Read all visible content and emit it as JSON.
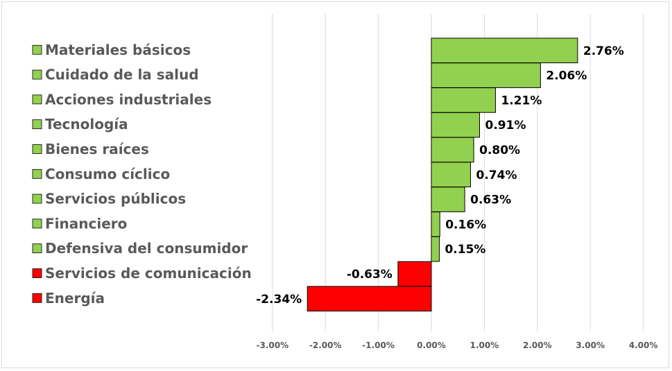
{
  "chart_data": {
    "type": "bar",
    "orientation": "horizontal",
    "categories": [
      "Materiales básicos",
      "Cuidado de la salud",
      "Acciones industriales",
      "Tecnología",
      "Bienes raíces",
      "Consumo cíclico",
      "Servicios públicos",
      "Financiero",
      "Defensiva del consumidor",
      "Servicios de comunicación",
      "Energía"
    ],
    "values": [
      2.76,
      2.06,
      1.21,
      0.91,
      0.8,
      0.74,
      0.63,
      0.16,
      0.15,
      -0.63,
      -2.34
    ],
    "data_labels": [
      "2.76%",
      "2.06%",
      "1.21%",
      "0.91%",
      "0.80%",
      "0.74%",
      "0.63%",
      "0.16%",
      "0.15%",
      "-0.63%",
      "-2.34%"
    ],
    "x_ticks": [
      -3,
      -2,
      -1,
      0,
      1,
      2,
      3,
      4
    ],
    "x_tick_labels": [
      "-3.00%",
      "-2.00%",
      "-1.00%",
      "0.00%",
      "1.00%",
      "2.00%",
      "3.00%",
      "4.00%"
    ],
    "xlim": [
      -3,
      4
    ],
    "grid": "vertical",
    "legend": "left",
    "colors": {
      "positive": "#92d050",
      "negative": "#ff0000",
      "grid": "#d9d9d9",
      "bar_outline": "#000000"
    }
  }
}
